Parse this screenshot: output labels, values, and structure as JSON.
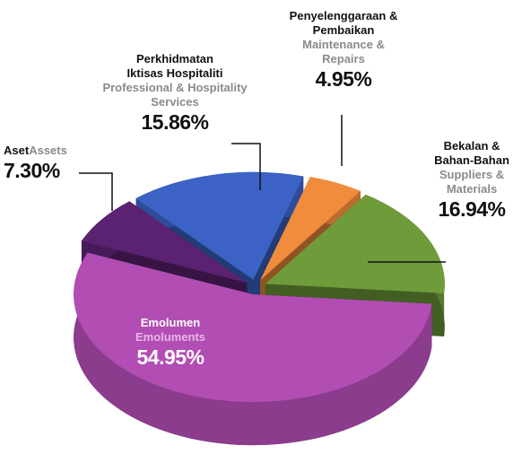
{
  "chart_data": {
    "type": "pie",
    "categories": [
      "Emolumen",
      "Aset",
      "Perkhidmatan Iktisas Hospitaliti",
      "Penyelenggaraan & Pembaikan",
      "Bekalan & Bahan-Bahan"
    ],
    "categories_en": [
      "Emoluments",
      "Assets",
      "Professional & Hospitality Services",
      "Maintenance & Repairs",
      "Suppliers & Materials"
    ],
    "values": [
      54.95,
      7.3,
      15.86,
      4.95,
      16.94
    ],
    "value_labels": [
      "54.95%",
      "7.30%",
      "15.86%",
      "4.95%",
      "16.94%"
    ],
    "colors": [
      "#b24db4",
      "#5b2271",
      "#3b62c4",
      "#f08c3c",
      "#6f9c3a"
    ]
  }
}
